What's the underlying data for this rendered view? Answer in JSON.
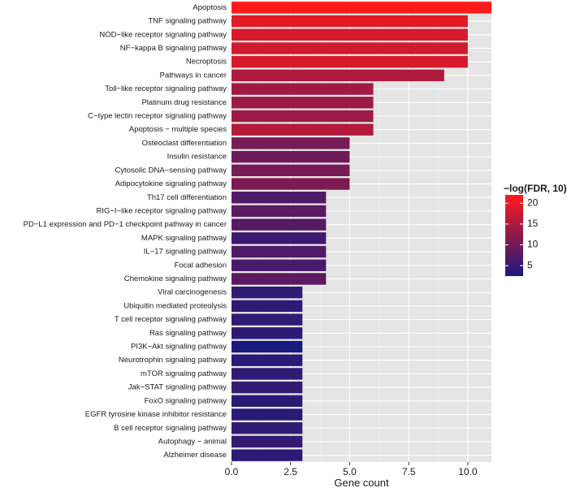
{
  "chart_data": {
    "type": "bar",
    "orientation": "horizontal",
    "xlabel": "Gene count",
    "ylabel": "",
    "xlim": [
      0,
      11
    ],
    "xticks": [
      0,
      2.5,
      5,
      7.5,
      10
    ],
    "xtick_labels": [
      "0.0",
      "2.5",
      "5.0",
      "7.5",
      "10.0"
    ],
    "grid": true,
    "categories": [
      "Apoptosis",
      "TNF signaling pathway",
      "NOD−like receptor signaling pathway",
      "NF−kappa B signaling pathway",
      "Necroptosis",
      "Pathways in cancer",
      "Toll−like receptor signaling pathway",
      "Platinum drug resistance",
      "C−type lectin receptor signaling pathway",
      "Apoptosis − multiple species",
      "Osteoclast differentiation",
      "Insulin resistance",
      "Cytosolic DNA−sensing pathway",
      "Adipocytokine signaling pathway",
      "Th17 cell differentiation",
      "RIG−I−like receptor signaling pathway",
      "PD−L1 expression and PD−1 checkpoint pathway in cancer",
      "MAPK signaling pathway",
      "IL−17 signaling pathway",
      "Focal adhesion",
      "Chemokine signaling pathway",
      "Viral carcinogenesis",
      "Ubiquitin mediated proteolysis",
      "T cell receptor signaling pathway",
      "Ras signaling pathway",
      "PI3K−Akt signaling pathway",
      "Neurotrophin signaling pathway",
      "mTOR signaling pathway",
      "Jak−STAT signaling pathway",
      "FoxO signaling pathway",
      "EGFR tyrosine kinase inhibitor resistance",
      "B cell receptor signaling pathway",
      "Autophagy − animal",
      "Alzheimer disease"
    ],
    "values": [
      11,
      10,
      10,
      10,
      10,
      9,
      6,
      6,
      6,
      6,
      5,
      5,
      5,
      5,
      4,
      4,
      4,
      4,
      4,
      4,
      4,
      3,
      3,
      3,
      3,
      3,
      3,
      3,
      3,
      3,
      3,
      3,
      3,
      3
    ],
    "color_values": [
      22,
      19.5,
      18.5,
      18,
      18.5,
      15,
      14,
      13.5,
      13.5,
      15.5,
      10.5,
      9.5,
      10.5,
      11,
      7,
      8,
      7.5,
      5.5,
      7,
      6.5,
      8,
      4.5,
      4.2,
      4.5,
      4.2,
      2.5,
      3.8,
      4.5,
      4.8,
      3.8,
      3.8,
      4.5,
      4.8,
      4.0
    ],
    "legend": {
      "title": "−log(FDR, 10)",
      "ticks": [
        5,
        10,
        15,
        20
      ],
      "tick_labels": [
        "5",
        "10",
        "15",
        "20"
      ],
      "range": [
        2.5,
        22
      ],
      "low_color": "#1a1a7e",
      "high_color": "#ff1a1a",
      "placement": "right"
    }
  }
}
